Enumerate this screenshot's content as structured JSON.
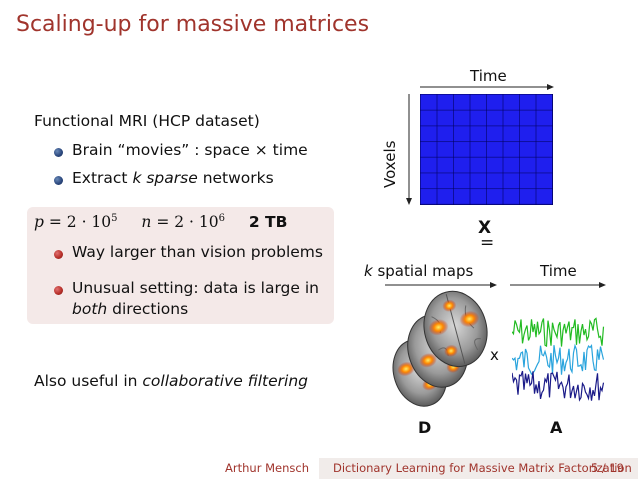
{
  "title": "Scaling-up for massive matrices",
  "main": {
    "heading": "Functional MRI (HCP dataset)",
    "bullets": [
      {
        "pre": "Brain “movies” : space × time",
        "em": "",
        "post": ""
      },
      {
        "pre": "Extract ",
        "em": "k sparse",
        "post": " networks"
      }
    ]
  },
  "alert_box": {
    "p_label": "p",
    "p_value": "= 2 · 10",
    "p_exp": "5",
    "n_label": "n",
    "n_value": "= 2 · 10",
    "n_exp": "6",
    "size": "2 TB",
    "bullets": [
      {
        "text": "Way larger than vision problems"
      },
      {
        "line1": "Unusual setting: data is large in",
        "em": "both",
        "line2_rest": " directions"
      }
    ]
  },
  "also": {
    "pre": "Also useful in ",
    "em": "collaborative filtering"
  },
  "diagram": {
    "time_top_label": "Time",
    "voxels_label": "Voxels",
    "matrix_symbol": "X",
    "equals": "=",
    "k_label": "k",
    "spatial_maps_label": " spatial maps",
    "time_right_label": "Time",
    "times_symbol": "x",
    "d_label": "D",
    "a_label": "A",
    "series_colors": [
      "#22bb22",
      "#2aa4dd",
      "#1a1a88"
    ],
    "matrix_color": "#1f1fee"
  },
  "footer": {
    "author": "Arthur Mensch",
    "title": "Dictionary Learning for Massive Matrix Factorization",
    "page": "5 / 19"
  }
}
